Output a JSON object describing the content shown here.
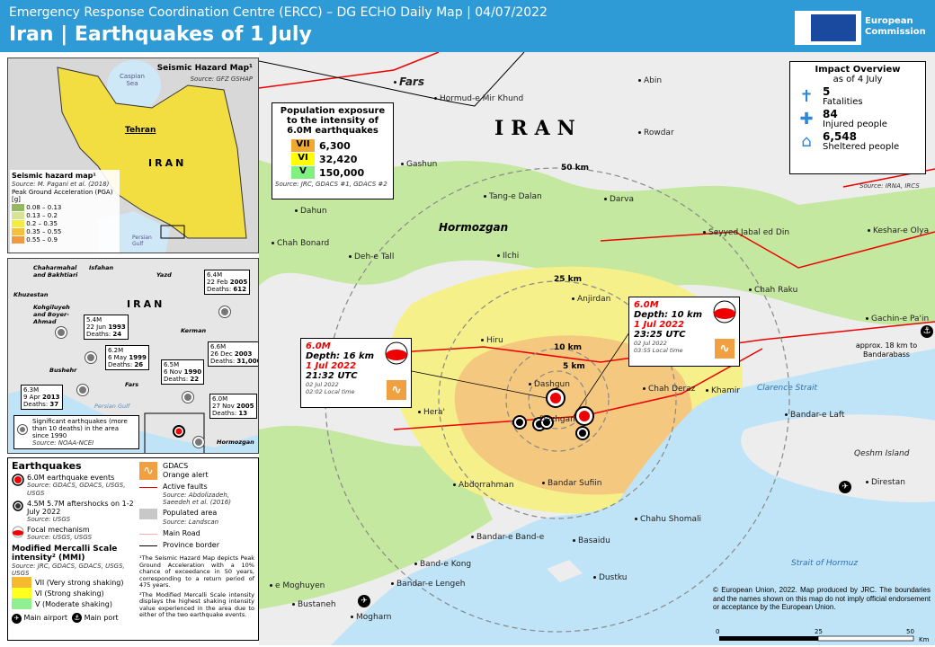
{
  "header": {
    "subtitle": "Emergency Response Coordination Centre (ERCC) – DG ECHO Daily Map | 04/07/2022",
    "title": "Iran | Earthquakes of 1 July",
    "logo_text": "European Commission",
    "color": "#2e9ad6"
  },
  "map": {
    "country": "IRAN",
    "provinces": [
      "Fars",
      "Hormozgan"
    ],
    "places": [
      "Hormud-e Mir Khund",
      "Abin",
      "Rowdar",
      "Gashun",
      "Tang-e Dalan",
      "Darva",
      "Dahun",
      "Chah Bonard",
      "Deh-e Tall",
      "Ilchi",
      "Keshar-e Olya",
      "Seyyed Jabal ed Din",
      "Chah Raku",
      "Anjirdan",
      "Hiru",
      "Gachin-e Pa'in",
      "Dashgun",
      "Chah Deraz",
      "Khamir",
      "Hera'",
      "Dezhgan",
      "Bandar-e Laft",
      "Qeshm Island",
      "Abdorrahman",
      "Bandar Sufiin",
      "Direstan",
      "Chahu Shomali",
      "Bandar-e Band-e",
      "Basaidu",
      "e Moghuyen",
      "Band-e Kong",
      "Bandar-e Lengeh",
      "Dustku",
      "Bustaneh",
      "Mogharn",
      "Clarence Strait",
      "Strait of Hormuz"
    ],
    "rings": [
      "50 km",
      "25 km",
      "10 km",
      "5 km"
    ],
    "port_note": "approx. 18 km to Bandarabass",
    "copyright": "© European Union, 2022. Map produced by JRC. The boundaries and the names shown on this map do not imply official endorsement or acceptance by the European Union.",
    "scale": [
      "0",
      "25",
      "50",
      "Km"
    ]
  },
  "population": {
    "title": "Population exposure to the intensity of 6.0M earthquakes",
    "rows": [
      {
        "level": "VII",
        "value": "6,300",
        "color": "#f0a830"
      },
      {
        "level": "VI",
        "value": "32,420",
        "color": "#ffff00"
      },
      {
        "level": "V",
        "value": "150,000",
        "color": "#80f080"
      }
    ],
    "source": "Source: JRC, GDACS #1, GDACS #2"
  },
  "impact": {
    "title": "Impact Overview",
    "as_of": "as of 4 July",
    "items": [
      {
        "value": "5",
        "label": "Fatalities",
        "icon": "fatality-icon"
      },
      {
        "value": "84",
        "label": "Injured people",
        "icon": "injured-icon"
      },
      {
        "value": "6,548",
        "label": "Sheltered people",
        "icon": "shelter-icon"
      }
    ],
    "source": "Source: IRNA, IRCS"
  },
  "events": [
    {
      "mag": "6.0M",
      "depth": "Depth: 16 km",
      "date": "1 Jul 2022",
      "utc": "21:32 UTC",
      "local_date": "02 Jul 2022",
      "local": "02:02 Local time"
    },
    {
      "mag": "6.0M",
      "depth": "Depth: 10 km",
      "date": "1 Jul 2022",
      "utc": "23:25 UTC",
      "local_date": "02 Jul 2022",
      "local": "03:55 Local time"
    }
  ],
  "hazard_inset": {
    "title": "Seismic Hazard Map¹",
    "source": "Source: GFZ GSHAP",
    "caspian": "Caspian Sea",
    "gulf": "Persian Gulf",
    "capital": "Tehran",
    "country": "IRAN",
    "legend_title": "Seismic hazard map¹",
    "legend_source": "Source: M. Pagani et al. (2018)",
    "legend_sub": "Peak Ground Acceleration (PGA) [g]",
    "classes": [
      {
        "label": "0.08 – 0.13",
        "color": "#94b860"
      },
      {
        "label": "0.13 – 0.2",
        "color": "#d6e49a"
      },
      {
        "label": "0.2 – 0.35",
        "color": "#f4ec40"
      },
      {
        "label": "0.35 – 0.55",
        "color": "#f4c040"
      },
      {
        "label": "0.55 – 0.9",
        "color": "#f09a40"
      }
    ]
  },
  "history_inset": {
    "country": "IRAN",
    "provinces": [
      "Chaharmahal and Bakhtiari",
      "Isfahan",
      "Yazd",
      "Khuzestan",
      "Kohgiluyeh and Boyer-Ahmad",
      "Kerman",
      "Bushehr",
      "Fars",
      "Hormozgan"
    ],
    "gulf": "Persian Gulf",
    "quakes": [
      {
        "mag": "6.4M",
        "date": "22 Feb",
        "year": "2005",
        "deaths": "612"
      },
      {
        "mag": "5.4M",
        "date": "22 Jun",
        "year": "1993",
        "deaths": "24"
      },
      {
        "mag": "6.2M",
        "date": "6 May",
        "year": "1999",
        "deaths": "26"
      },
      {
        "mag": "6.6M",
        "date": "26 Dec",
        "year": "2003",
        "deaths": "31,000"
      },
      {
        "mag": "6.5M",
        "date": "6 Nov",
        "year": "1990",
        "deaths": "22"
      },
      {
        "mag": "6.3M",
        "date": "9 Apr",
        "year": "2013",
        "deaths": "37"
      },
      {
        "mag": "6.0M",
        "date": "27 Nov",
        "year": "2005",
        "deaths": "13"
      }
    ],
    "deaths_label": "Deaths:",
    "legend": "Significant earthquakes (more than 10 deaths) in the area since 1990",
    "source": "Source: NOAA-NCEI"
  },
  "legend": {
    "title": "Earthquakes",
    "items": [
      {
        "label": "6.0M earthquake events",
        "source": "Source: GDACS, GDACS, USGS, USGS"
      },
      {
        "label": "4.5M 5.7M aftershocks on 1-2 July 2022",
        "source": "Source: USGS"
      },
      {
        "label": "Focal mechanism",
        "source": "Source: USGS, USGS"
      }
    ],
    "mmi_title": "Modified Mercalli Scale intensity² (MMI)",
    "mmi_source": "Source: JRC, GDACS, GDACS, USGS, USGS",
    "mmi": [
      {
        "label": "VII (Very strong shaking)",
        "color": "#f5b82e"
      },
      {
        "label": "VI (Strong shaking)",
        "color": "#ffff20"
      },
      {
        "label": "V (Moderate shaking)",
        "color": "#90f090"
      }
    ],
    "airport": "Main airport",
    "port": "Main port",
    "gdacs": "GDACS",
    "gdacs_alert": "Orange alert",
    "faults": "Active faults",
    "faults_source": "Source: Abdolizadeh, Saeedeh et al. (2016)",
    "populated": "Populated area",
    "populated_source": "Source: Landscan",
    "road": "Main Road",
    "border": "Province border",
    "note1": "¹The Seismic Hazard Map depicts Peak Ground Acceleration with a 10% chance of exceedance in 50 years, corresponding to a return period of 475 years.",
    "note2": "²The Modified Mercalli Scale intensity displays the highest shaking intensity value experienced in the area due to either of the two earthquake events."
  }
}
